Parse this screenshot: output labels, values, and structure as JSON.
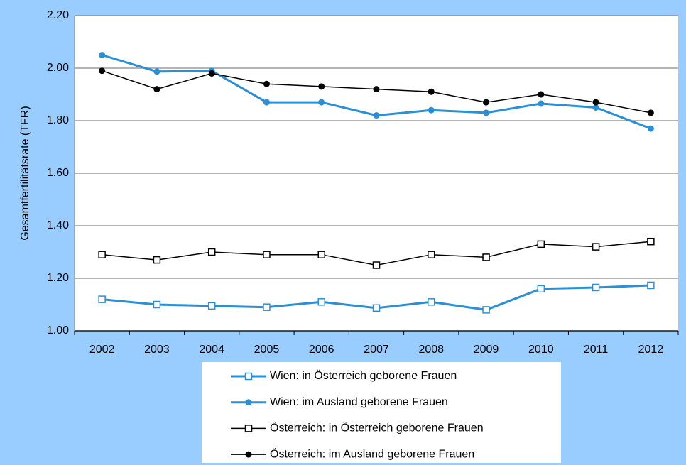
{
  "chart_data": {
    "type": "line",
    "y_label": "Gesamtfertilitätsrate (TFR)",
    "categories": [
      "2002",
      "2003",
      "2004",
      "2005",
      "2006",
      "2007",
      "2008",
      "2009",
      "2010",
      "2011",
      "2012"
    ],
    "series": [
      {
        "name": "Wien: in Österreich geborene Frauen",
        "color": "#2b8fd6",
        "marker": "square",
        "values": [
          1.12,
          1.1,
          1.095,
          1.09,
          1.11,
          1.087,
          1.11,
          1.08,
          1.16,
          1.165,
          1.173
        ]
      },
      {
        "name": "Wien: im Ausland geborene Frauen",
        "color": "#2b8fd6",
        "marker": "circle",
        "values": [
          2.05,
          1.987,
          1.99,
          1.87,
          1.87,
          1.82,
          1.84,
          1.83,
          1.865,
          1.85,
          1.77
        ]
      },
      {
        "name": "Österreich: in Österreich geborene Frauen",
        "color": "#000000",
        "marker": "square",
        "values": [
          1.29,
          1.27,
          1.3,
          1.29,
          1.29,
          1.25,
          1.29,
          1.28,
          1.33,
          1.32,
          1.34
        ]
      },
      {
        "name": "Österreich: im Ausland geborene Frauen",
        "color": "#000000",
        "marker": "circle",
        "values": [
          1.99,
          1.92,
          1.98,
          1.94,
          1.93,
          1.92,
          1.91,
          1.87,
          1.9,
          1.87,
          1.83
        ]
      }
    ],
    "ylim": [
      1.0,
      2.2
    ],
    "yticks": [
      {
        "value": 1.0,
        "label": "1.00"
      },
      {
        "value": 1.2,
        "label": "1.20"
      },
      {
        "value": 1.4,
        "label": "1.40"
      },
      {
        "value": 1.6,
        "label": "1.60"
      },
      {
        "value": 1.8,
        "label": "1.80"
      },
      {
        "value": 2.0,
        "label": "2.00"
      },
      {
        "value": 2.2,
        "label": "2.20"
      }
    ],
    "grid": true,
    "legend": "bottom"
  }
}
